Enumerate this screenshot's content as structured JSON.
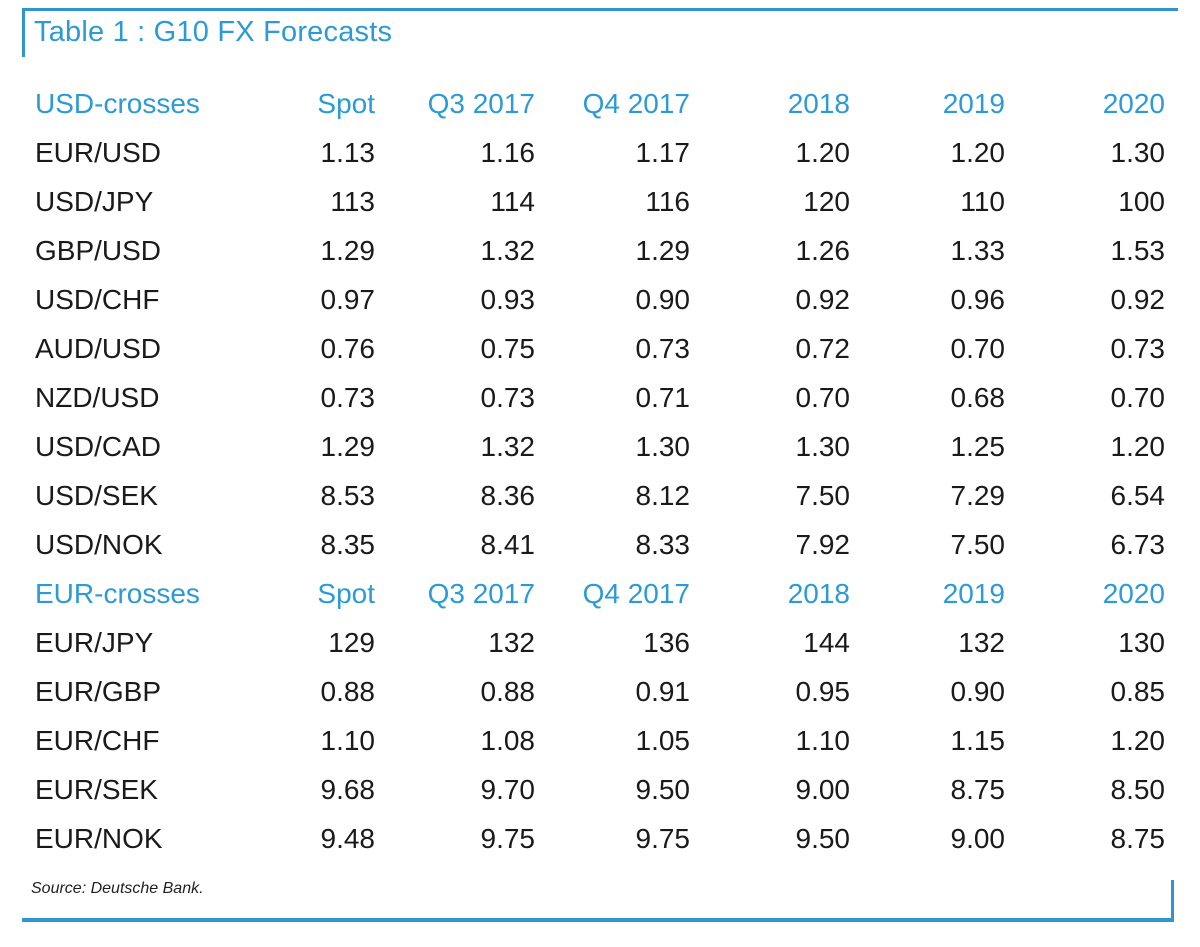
{
  "title": "Table 1 : G10 FX Forecasts",
  "source": "Source: Deutsche Bank.",
  "colors": {
    "accent_blue": "#2b9ad5",
    "rule_blue": "#2f95cd",
    "body_text": "#1a1a1a"
  },
  "table": {
    "sections": [
      {
        "header": {
          "label": "USD-crosses",
          "columns": [
            "Spot",
            "Q3 2017",
            "Q4 2017",
            "2018",
            "2019",
            "2020"
          ]
        },
        "rows": [
          {
            "pair": "EUR/USD",
            "values": [
              "1.13",
              "1.16",
              "1.17",
              "1.20",
              "1.20",
              "1.30"
            ]
          },
          {
            "pair": "USD/JPY",
            "values": [
              "113",
              "114",
              "116",
              "120",
              "110",
              "100"
            ]
          },
          {
            "pair": "GBP/USD",
            "values": [
              "1.29",
              "1.32",
              "1.29",
              "1.26",
              "1.33",
              "1.53"
            ]
          },
          {
            "pair": "USD/CHF",
            "values": [
              "0.97",
              "0.93",
              "0.90",
              "0.92",
              "0.96",
              "0.92"
            ]
          },
          {
            "pair": "AUD/USD",
            "values": [
              "0.76",
              "0.75",
              "0.73",
              "0.72",
              "0.70",
              "0.73"
            ]
          },
          {
            "pair": "NZD/USD",
            "values": [
              "0.73",
              "0.73",
              "0.71",
              "0.70",
              "0.68",
              "0.70"
            ]
          },
          {
            "pair": "USD/CAD",
            "values": [
              "1.29",
              "1.32",
              "1.30",
              "1.30",
              "1.25",
              "1.20"
            ]
          },
          {
            "pair": "USD/SEK",
            "values": [
              "8.53",
              "8.36",
              "8.12",
              "7.50",
              "7.29",
              "6.54"
            ]
          },
          {
            "pair": "USD/NOK",
            "values": [
              "8.35",
              "8.41",
              "8.33",
              "7.92",
              "7.50",
              "6.73"
            ]
          }
        ]
      },
      {
        "header": {
          "label": "EUR-crosses",
          "columns": [
            "Spot",
            "Q3 2017",
            "Q4 2017",
            "2018",
            "2019",
            "2020"
          ]
        },
        "rows": [
          {
            "pair": "EUR/JPY",
            "values": [
              "129",
              "132",
              "136",
              "144",
              "132",
              "130"
            ]
          },
          {
            "pair": "EUR/GBP",
            "values": [
              "0.88",
              "0.88",
              "0.91",
              "0.95",
              "0.90",
              "0.85"
            ]
          },
          {
            "pair": "EUR/CHF",
            "values": [
              "1.10",
              "1.08",
              "1.05",
              "1.10",
              "1.15",
              "1.20"
            ]
          },
          {
            "pair": "EUR/SEK",
            "values": [
              "9.68",
              "9.70",
              "9.50",
              "9.00",
              "8.75",
              "8.50"
            ]
          },
          {
            "pair": "EUR/NOK",
            "values": [
              "9.48",
              "9.75",
              "9.75",
              "9.50",
              "9.00",
              "8.75"
            ]
          }
        ]
      }
    ]
  }
}
